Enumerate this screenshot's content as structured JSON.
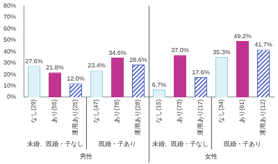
{
  "chart_data": {
    "type": "bar",
    "categories": [
      "なし(29)",
      "あり(55)",
      "運用あり(25)",
      "なし(47)",
      "あり(78)",
      "運用あり(28)",
      "なし(15)",
      "あり(73)",
      "運用あり(17)",
      "なし(34)",
      "あり(61)",
      "運用あり(12)"
    ],
    "values": [
      27.6,
      21.8,
      12.0,
      23.4,
      34.6,
      28.6,
      6.7,
      37.0,
      17.6,
      35.3,
      49.2,
      41.7
    ],
    "value_labels": [
      "27.6%",
      "21.8%",
      "12.0%",
      "23.4%",
      "34.6%",
      "28.6%",
      "6.7%",
      "37.0%",
      "17.6%",
      "35.3%",
      "49.2%",
      "41.7%"
    ],
    "colors": [
      "#dff1f8",
      "#c0338f",
      "#4a5fc1",
      "#dff1f8",
      "#c0338f",
      "#4a5fc1",
      "#dff1f8",
      "#c0338f",
      "#4a5fc1",
      "#dff1f8",
      "#c0338f",
      "#4a5fc1"
    ],
    "category_groups": [
      [
        "未婚、既婚・子なし",
        "既婚・子あり",
        "未婚、既婚・子なし",
        "既婚・子あり"
      ],
      [
        "男性",
        "女性"
      ]
    ],
    "ylim": [
      0,
      80
    ],
    "yticks": [
      {
        "value": 0,
        "label": "0%"
      },
      {
        "value": 10,
        "label": "10%"
      },
      {
        "value": 20,
        "label": "20%"
      },
      {
        "value": 30,
        "label": "30%"
      },
      {
        "value": 40,
        "label": "40%"
      },
      {
        "value": 50,
        "label": "50%"
      },
      {
        "value": 60,
        "label": "60%"
      },
      {
        "value": 70,
        "label": "70%"
      },
      {
        "value": 80,
        "label": "80%"
      }
    ],
    "grid": false,
    "data_labels": true
  }
}
